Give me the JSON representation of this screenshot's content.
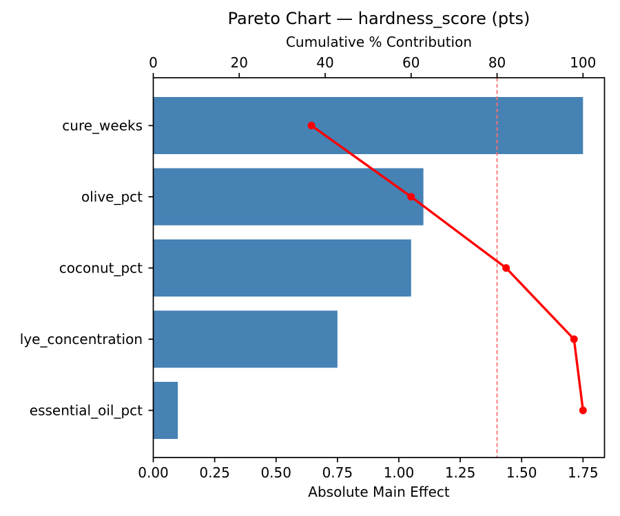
{
  "chart_data": {
    "type": "bar",
    "subtype": "pareto-horizontal-bars-with-cumulative-line",
    "title": "Pareto Chart — hardness_score (pts)",
    "categories": [
      "cure_weeks",
      "olive_pct",
      "coconut_pct",
      "lye_concentration",
      "essential_oil_pct"
    ],
    "series": [
      {
        "name": "Absolute Main Effect",
        "type": "bar",
        "axis": "bottom",
        "values": [
          1.75,
          1.1,
          1.05,
          0.75,
          0.1
        ]
      },
      {
        "name": "Cumulative % Contribution",
        "type": "line",
        "axis": "top",
        "values": [
          36.8,
          60.0,
          82.1,
          97.9,
          100.0
        ]
      }
    ],
    "bottom_axis": {
      "label": "Absolute Main Effect",
      "ticks": [
        0,
        0.25,
        0.5,
        0.75,
        1.0,
        1.25,
        1.5,
        1.75
      ],
      "tick_labels": [
        "0.00",
        "0.25",
        "0.50",
        "0.75",
        "1.00",
        "1.25",
        "1.50",
        "1.75"
      ],
      "lim": [
        0,
        1.8375
      ]
    },
    "top_axis": {
      "label": "Cumulative % Contribution",
      "ticks": [
        0,
        20,
        40,
        60,
        80,
        100
      ],
      "tick_labels": [
        "0",
        "20",
        "40",
        "60",
        "80",
        "100"
      ],
      "lim": [
        0,
        105
      ]
    },
    "reference_line": {
      "axis": "top",
      "value": 80,
      "style": "dashed"
    },
    "grid": false,
    "legend": null,
    "colors": {
      "bar": "#4682b4",
      "line": "#ff0000",
      "reference": "#ff7070",
      "spine": "#000000",
      "text": "#000000",
      "background": "#ffffff"
    }
  }
}
